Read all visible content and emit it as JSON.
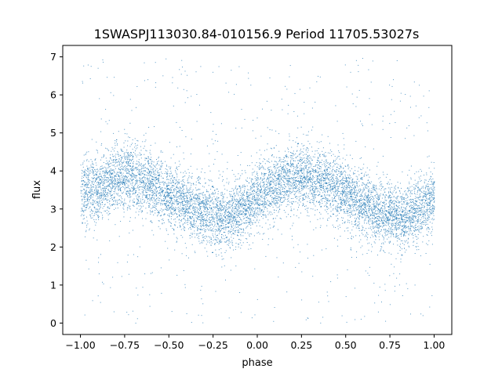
{
  "chart_data": {
    "type": "scatter",
    "title": "1SWASPJ113030.84-010156.9 Period 11705.53027s",
    "xlabel": "phase",
    "ylabel": "flux",
    "xlim": [
      -1.1,
      1.1
    ],
    "ylim": [
      -0.3,
      7.3
    ],
    "xticks": [
      -1.0,
      -0.75,
      -0.5,
      -0.25,
      0.0,
      0.25,
      0.5,
      0.75,
      1.0
    ],
    "xtick_labels": [
      "−1.00",
      "−0.75",
      "−0.50",
      "−0.25",
      "0.00",
      "0.25",
      "0.50",
      "0.75",
      "1.00"
    ],
    "yticks": [
      0,
      1,
      2,
      3,
      4,
      5,
      6,
      7
    ],
    "ytick_labels": [
      "0",
      "1",
      "2",
      "3",
      "4",
      "5",
      "6",
      "7"
    ],
    "grid": false,
    "marker_color": "#1f77b4",
    "series_sampled_points": [
      {
        "x": -1.0,
        "y": 3.4
      },
      {
        "x": -0.9,
        "y": 3.6
      },
      {
        "x": -0.8,
        "y": 3.85
      },
      {
        "x": -0.75,
        "y": 3.9
      },
      {
        "x": -0.7,
        "y": 3.85
      },
      {
        "x": -0.6,
        "y": 3.7
      },
      {
        "x": -0.5,
        "y": 3.4
      },
      {
        "x": -0.4,
        "y": 3.1
      },
      {
        "x": -0.3,
        "y": 2.9
      },
      {
        "x": -0.2,
        "y": 2.8
      },
      {
        "x": -0.1,
        "y": 2.95
      },
      {
        "x": 0.0,
        "y": 3.3
      },
      {
        "x": 0.1,
        "y": 3.6
      },
      {
        "x": 0.2,
        "y": 3.85
      },
      {
        "x": 0.25,
        "y": 3.9
      },
      {
        "x": 0.3,
        "y": 3.85
      },
      {
        "x": 0.4,
        "y": 3.7
      },
      {
        "x": 0.5,
        "y": 3.4
      },
      {
        "x": 0.6,
        "y": 3.1
      },
      {
        "x": 0.7,
        "y": 2.9
      },
      {
        "x": 0.8,
        "y": 2.8
      },
      {
        "x": 0.9,
        "y": 2.95
      },
      {
        "x": 1.0,
        "y": 3.3
      }
    ]
  }
}
